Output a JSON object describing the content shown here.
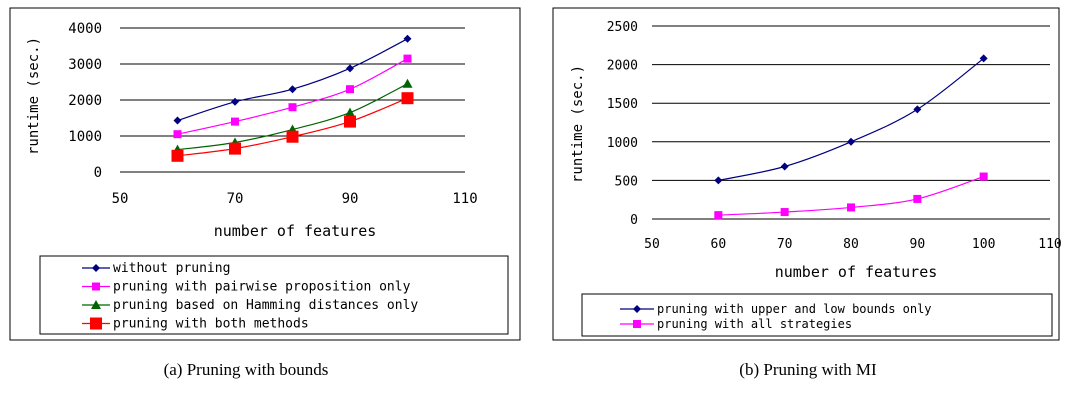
{
  "captions": {
    "a": "(a) Pruning with bounds",
    "b": "(b) Pruning with MI"
  },
  "chart_data": [
    {
      "type": "line",
      "title": "",
      "xlabel": "number of features",
      "ylabel": "runtime (sec.)",
      "xlim": [
        50,
        110
      ],
      "ylim": [
        0,
        4000
      ],
      "xticks": [
        50,
        70,
        90,
        110
      ],
      "yticks": [
        0,
        1000,
        2000,
        3000,
        4000
      ],
      "grid": "horizontal",
      "legend_position": "bottom",
      "x": [
        60,
        70,
        80,
        90,
        100
      ],
      "series": [
        {
          "name": "without pruning",
          "values": [
            1430,
            1950,
            2300,
            2880,
            3700
          ],
          "color": "#000080",
          "marker": "diamond"
        },
        {
          "name": "pruning with pairwise proposition only",
          "values": [
            1050,
            1400,
            1800,
            2300,
            3150
          ],
          "color": "#ff00ff",
          "marker": "square"
        },
        {
          "name": "pruning based on Hamming distances only",
          "values": [
            620,
            820,
            1180,
            1650,
            2450
          ],
          "color": "#006400",
          "marker": "triangle"
        },
        {
          "name": "pruning with both methods",
          "values": [
            450,
            650,
            980,
            1400,
            2050
          ],
          "color": "#ff0000",
          "marker": "bigsquare"
        }
      ]
    },
    {
      "type": "line",
      "title": "",
      "xlabel": "number of features",
      "ylabel": "runtime (sec.)",
      "xlim": [
        50,
        110
      ],
      "ylim": [
        0,
        2500
      ],
      "xticks": [
        50,
        60,
        70,
        80,
        90,
        100,
        110
      ],
      "yticks": [
        0,
        500,
        1000,
        1500,
        2000,
        2500
      ],
      "grid": "horizontal",
      "legend_position": "bottom",
      "x": [
        60,
        70,
        80,
        90,
        100
      ],
      "series": [
        {
          "name": "pruning with upper and low bounds only",
          "values": [
            500,
            680,
            1000,
            1420,
            2080
          ],
          "color": "#000080",
          "marker": "diamond"
        },
        {
          "name": "pruning with all strategies",
          "values": [
            50,
            90,
            150,
            260,
            550
          ],
          "color": "#ff00ff",
          "marker": "square"
        }
      ]
    }
  ]
}
